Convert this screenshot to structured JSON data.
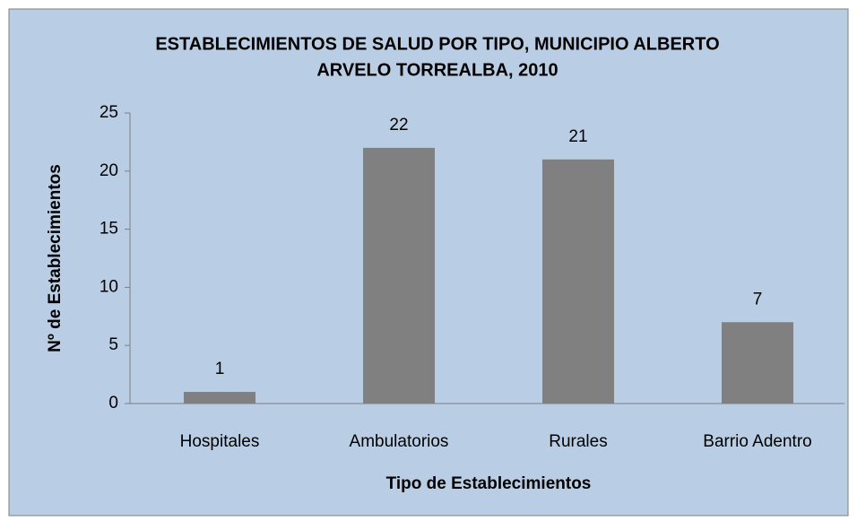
{
  "chart_data": {
    "type": "bar",
    "title": [
      "ESTABLECIMIENTOS DE SALUD POR TIPO, MUNICIPIO ALBERTO",
      "ARVELO TORREALBA, 2010"
    ],
    "x_label": "Tipo de Establecimientos",
    "y_label": "Nº de Establecimientos",
    "categories": [
      "Hospitales",
      "Ambulatorios",
      "Rurales",
      "Barrio Adentro"
    ],
    "values": [
      1,
      22,
      21,
      7
    ],
    "color": "#808080",
    "background": "#b9cde5",
    "ylim": [
      0,
      25
    ],
    "yticks": [
      0,
      5,
      10,
      15,
      20,
      25
    ],
    "grid": false
  }
}
